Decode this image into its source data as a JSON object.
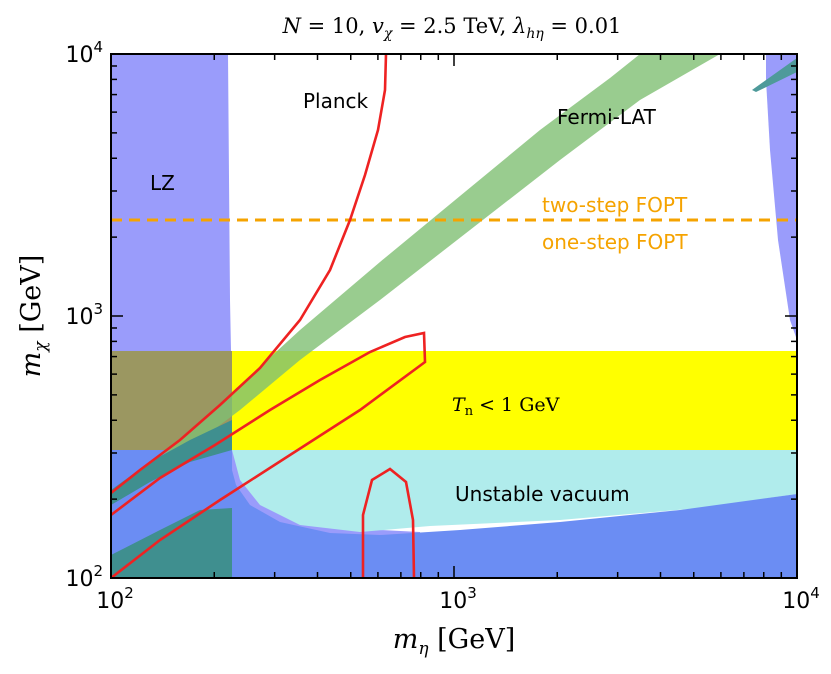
{
  "chart_data": {
    "type": "area",
    "title": "N = 10,  v_χ = 2.5 TeV,  λ_hη = 0.01",
    "xlabel": "m_η [GeV]",
    "ylabel": "m_χ [GeV]",
    "xscale": "log",
    "yscale": "log",
    "xlim": [
      100,
      10000
    ],
    "ylim": [
      100,
      10000
    ],
    "x_ticks": [
      {
        "value": 100,
        "base": "10",
        "exp": "2"
      },
      {
        "value": 1000,
        "base": "10",
        "exp": "3"
      },
      {
        "value": 10000,
        "base": "10",
        "exp": "4"
      }
    ],
    "y_ticks": [
      {
        "value": 100,
        "base": "10",
        "exp": "2"
      },
      {
        "value": 1000,
        "base": "10",
        "exp": "3"
      },
      {
        "value": 10000,
        "base": "10",
        "exp": "4"
      }
    ],
    "annotations": {
      "lz": "LZ",
      "planck": "Planck",
      "fermi": "Fermi-LAT",
      "two_step": "two-step FOPT",
      "one_step": "one-step FOPT",
      "tn": "T_n < 1 GeV",
      "unstable": "Unstable vacuum"
    },
    "fopt_boundary_m_chi": 2230,
    "regions": [
      {
        "key": "lz",
        "color": "#6f72f7",
        "opacity": 0.7
      },
      {
        "key": "fermi",
        "color": "#7fbf73",
        "opacity": 0.8
      },
      {
        "key": "tn",
        "color": "#ffff00",
        "opacity": 1
      },
      {
        "key": "unstable",
        "color": "#b0ecec",
        "opacity": 1
      },
      {
        "key": "unstable_deep",
        "color": "#6b8df3",
        "opacity": 1
      }
    ],
    "curve_color": "#ee2222",
    "fopt_color": "#f5a300"
  }
}
